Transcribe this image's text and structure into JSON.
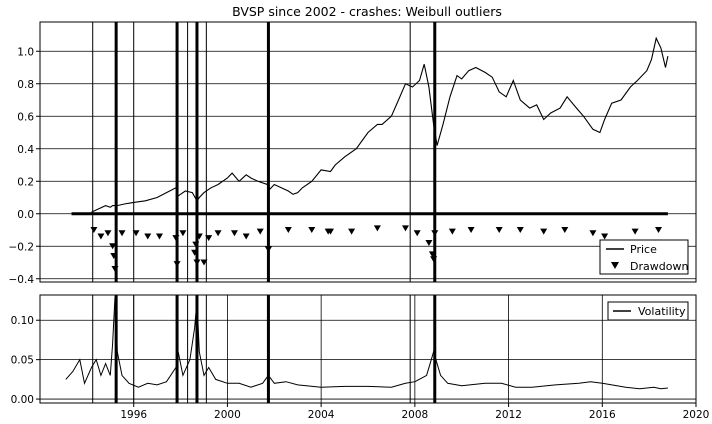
{
  "chart_data": [
    {
      "type": "line",
      "title": "BVSP since 2002 - crashes: Weibull outliers",
      "ylim": [
        -0.42,
        1.18
      ],
      "xlim": [
        1992.0,
        2020.0
      ],
      "grid": "horizontal",
      "yticks": [
        {
          "value": -0.4,
          "label": "−0.4"
        },
        {
          "value": -0.2,
          "label": "−0.2"
        },
        {
          "value": 0.0,
          "label": "0.0"
        },
        {
          "value": 0.2,
          "label": "0.2"
        },
        {
          "value": 0.4,
          "label": "0.4"
        },
        {
          "value": 0.6,
          "label": "0.6"
        },
        {
          "value": 0.8,
          "label": "0.8"
        },
        {
          "value": 1.0,
          "label": "1.0"
        }
      ],
      "legend": {
        "position": "lower-right",
        "entries": [
          "Price",
          "Drawdown"
        ]
      },
      "price_series": {
        "name": "Price",
        "x": [
          1994.2,
          1994.5,
          1994.8,
          1995.0,
          1995.1,
          1995.3,
          1995.6,
          1996.0,
          1996.5,
          1997.0,
          1997.4,
          1997.8,
          1997.9,
          1998.2,
          1998.5,
          1998.7,
          1998.8,
          1999.0,
          1999.3,
          1999.6,
          2000.0,
          2000.2,
          2000.5,
          2000.8,
          2001.0,
          2001.3,
          2001.7,
          2001.8,
          2002.0,
          2002.3,
          2002.6,
          2002.8,
          2003.0,
          2003.2,
          2003.6,
          2004.0,
          2004.4,
          2004.6,
          2005.0,
          2005.5,
          2006.0,
          2006.4,
          2006.6,
          2007.0,
          2007.3,
          2007.6,
          2007.9,
          2008.2,
          2008.4,
          2008.6,
          2008.8,
          2008.95,
          2009.2,
          2009.5,
          2009.8,
          2010.0,
          2010.3,
          2010.6,
          2011.0,
          2011.3,
          2011.6,
          2011.9,
          2012.2,
          2012.5,
          2012.9,
          2013.2,
          2013.5,
          2013.8,
          2014.2,
          2014.5,
          2014.9,
          2015.2,
          2015.6,
          2015.9,
          2016.1,
          2016.4,
          2016.8,
          2017.2,
          2017.5,
          2017.9,
          2018.1,
          2018.3,
          2018.5,
          2018.7,
          2018.8
        ],
        "y": [
          0.01,
          0.03,
          0.05,
          0.04,
          0.05,
          0.05,
          0.06,
          0.07,
          0.08,
          0.1,
          0.13,
          0.16,
          0.11,
          0.14,
          0.13,
          0.08,
          0.1,
          0.13,
          0.16,
          0.18,
          0.22,
          0.25,
          0.2,
          0.24,
          0.22,
          0.2,
          0.18,
          0.15,
          0.18,
          0.16,
          0.14,
          0.12,
          0.13,
          0.16,
          0.2,
          0.27,
          0.26,
          0.3,
          0.35,
          0.4,
          0.5,
          0.55,
          0.55,
          0.6,
          0.7,
          0.8,
          0.78,
          0.82,
          0.92,
          0.78,
          0.55,
          0.42,
          0.55,
          0.72,
          0.85,
          0.83,
          0.88,
          0.9,
          0.87,
          0.84,
          0.75,
          0.72,
          0.82,
          0.7,
          0.65,
          0.67,
          0.58,
          0.62,
          0.65,
          0.72,
          0.65,
          0.6,
          0.52,
          0.5,
          0.58,
          0.68,
          0.7,
          0.78,
          0.82,
          0.88,
          0.95,
          1.08,
          1.02,
          0.9,
          0.97
        ]
      },
      "drawdown_series": {
        "name": "Drawdown",
        "x": [
          1994.3,
          1994.6,
          1994.9,
          1995.1,
          1995.15,
          1995.2,
          1995.5,
          1996.1,
          1996.6,
          1997.1,
          1997.8,
          1997.85,
          1998.1,
          1998.6,
          1998.65,
          1998.7,
          1998.8,
          1999.0,
          1999.2,
          1999.6,
          2000.3,
          2000.8,
          2001.4,
          2001.75,
          2002.6,
          2003.6,
          2004.3,
          2004.4,
          2005.3,
          2006.4,
          2007.6,
          2008.1,
          2008.6,
          2008.75,
          2008.8,
          2008.85,
          2009.6,
          2010.4,
          2011.6,
          2012.5,
          2013.5,
          2014.4,
          2015.6,
          2016.1,
          2017.4,
          2018.4
        ],
        "y": [
          -0.1,
          -0.14,
          -0.12,
          -0.2,
          -0.26,
          -0.34,
          -0.12,
          -0.12,
          -0.14,
          -0.14,
          -0.15,
          -0.31,
          -0.12,
          -0.24,
          -0.19,
          -0.3,
          -0.14,
          -0.3,
          -0.15,
          -0.12,
          -0.12,
          -0.14,
          -0.11,
          -0.22,
          -0.1,
          -0.1,
          -0.11,
          -0.11,
          -0.11,
          -0.09,
          -0.09,
          -0.12,
          -0.18,
          -0.25,
          -0.28,
          -0.12,
          -0.11,
          -0.1,
          -0.1,
          -0.1,
          -0.11,
          -0.1,
          -0.12,
          -0.14,
          -0.11,
          -0.1
        ]
      },
      "crash_lines": [
        1995.25,
        1997.85,
        1998.7,
        2001.75,
        2008.85
      ],
      "minor_lines": [
        1994.25,
        1996.0,
        1998.3,
        1999.1,
        2007.8
      ]
    },
    {
      "type": "line",
      "ylim": [
        -0.005,
        0.132
      ],
      "xlim": [
        1992.0,
        2020.0
      ],
      "grid": "both",
      "yticks": [
        {
          "value": 0.0,
          "label": "0.00"
        },
        {
          "value": 0.05,
          "label": "0.05"
        },
        {
          "value": 0.1,
          "label": "0.10"
        }
      ],
      "xticks": [
        {
          "value": 1996,
          "label": "1996"
        },
        {
          "value": 2000,
          "label": "2000"
        },
        {
          "value": 2004,
          "label": "2004"
        },
        {
          "value": 2008,
          "label": "2008"
        },
        {
          "value": 2012,
          "label": "2012"
        },
        {
          "value": 2016,
          "label": "2016"
        },
        {
          "value": 2020,
          "label": "2020"
        }
      ],
      "legend": {
        "position": "upper-right",
        "entries": [
          "Volatility"
        ]
      },
      "volatility_series": {
        "name": "Volatility",
        "x": [
          1993.1,
          1993.4,
          1993.7,
          1993.9,
          1994.2,
          1994.4,
          1994.6,
          1994.8,
          1995.0,
          1995.1,
          1995.2,
          1995.3,
          1995.5,
          1995.8,
          1996.2,
          1996.6,
          1997.0,
          1997.4,
          1997.8,
          1997.9,
          1998.1,
          1998.4,
          1998.6,
          1998.7,
          1998.8,
          1999.0,
          1999.2,
          1999.5,
          2000.0,
          2000.5,
          2001.0,
          2001.5,
          2001.75,
          2002.0,
          2002.5,
          2003.0,
          2004.0,
          2005.0,
          2006.0,
          2007.0,
          2007.6,
          2008.0,
          2008.5,
          2008.8,
          2008.9,
          2009.1,
          2009.4,
          2010.0,
          2011.0,
          2011.7,
          2012.3,
          2013.0,
          2014.0,
          2015.0,
          2015.5,
          2016.0,
          2017.0,
          2017.6,
          2018.2,
          2018.5,
          2018.8
        ],
        "y": [
          0.025,
          0.035,
          0.05,
          0.02,
          0.04,
          0.05,
          0.03,
          0.045,
          0.03,
          0.07,
          0.13,
          0.06,
          0.03,
          0.02,
          0.015,
          0.02,
          0.018,
          0.022,
          0.04,
          0.06,
          0.03,
          0.05,
          0.09,
          0.125,
          0.06,
          0.03,
          0.04,
          0.025,
          0.02,
          0.02,
          0.015,
          0.02,
          0.03,
          0.02,
          0.022,
          0.018,
          0.015,
          0.016,
          0.016,
          0.015,
          0.02,
          0.022,
          0.03,
          0.06,
          0.05,
          0.03,
          0.02,
          0.017,
          0.02,
          0.02,
          0.015,
          0.015,
          0.018,
          0.02,
          0.022,
          0.02,
          0.015,
          0.013,
          0.015,
          0.013,
          0.014
        ]
      },
      "crash_lines": [
        1995.25,
        1997.85,
        1998.7,
        2001.75,
        2008.85
      ],
      "minor_lines": [
        1994.25,
        1996.0,
        1998.3,
        1999.1,
        2007.8
      ]
    }
  ]
}
